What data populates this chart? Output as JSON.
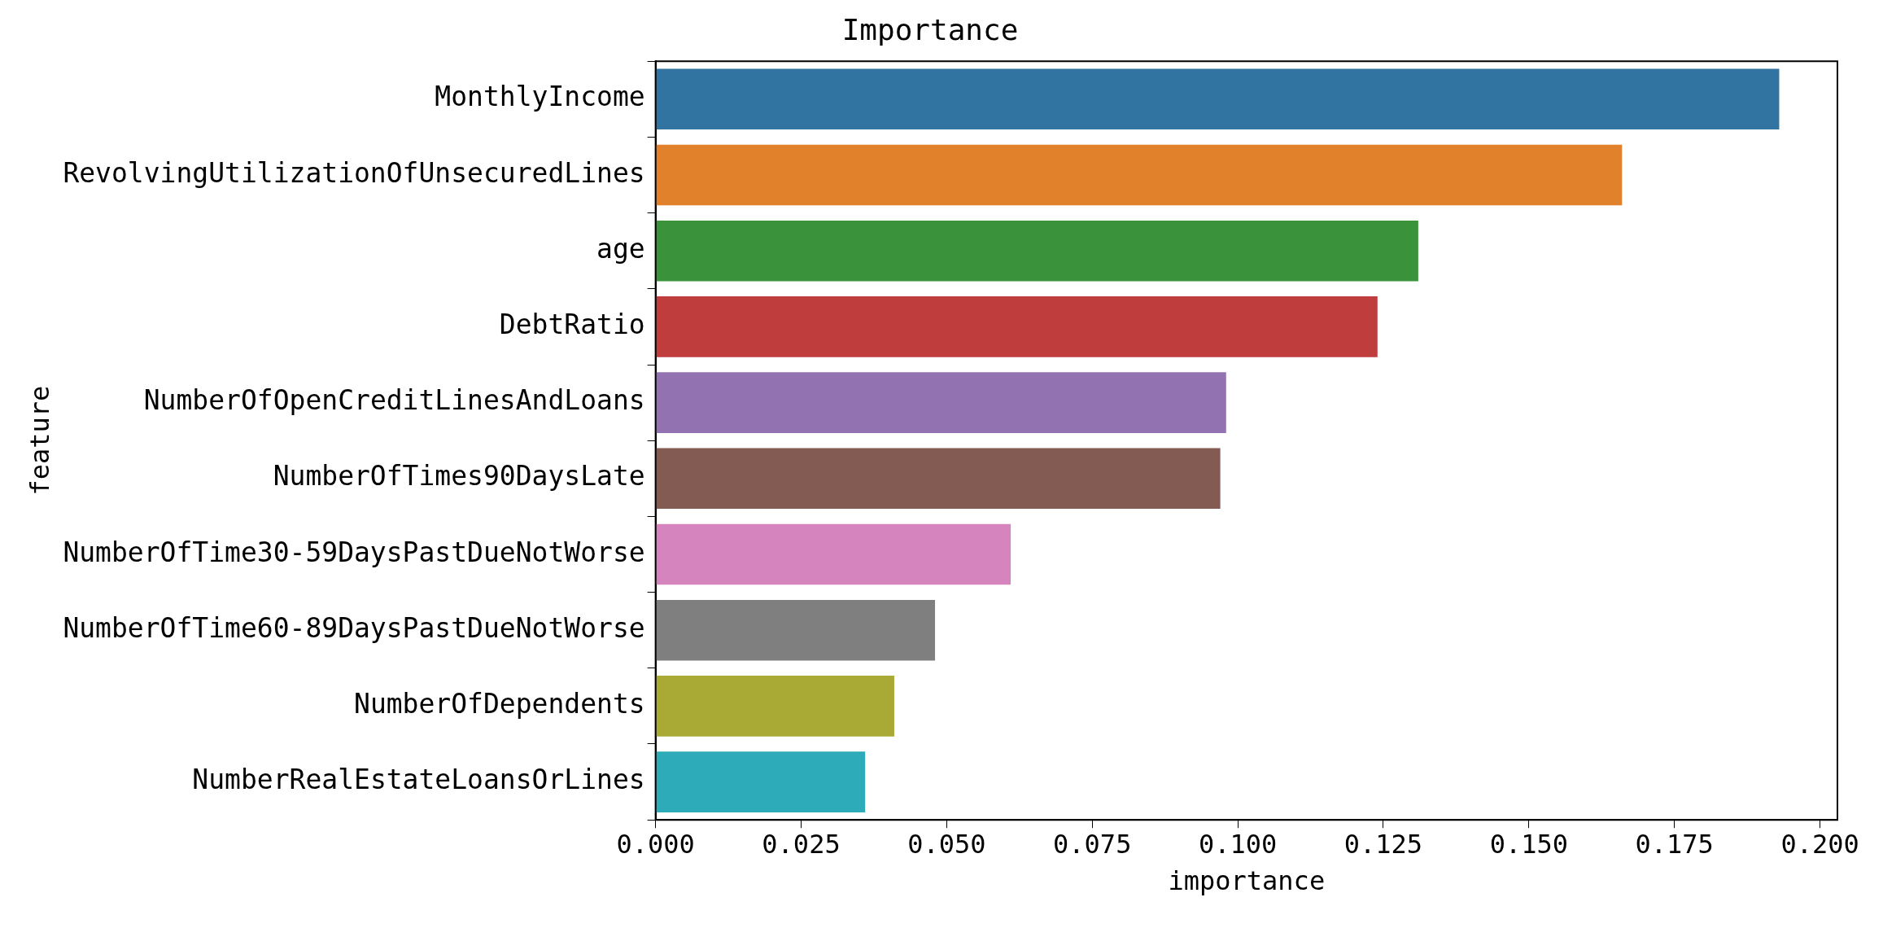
{
  "chart_data": {
    "type": "bar",
    "orientation": "horizontal",
    "title": "Importance",
    "xlabel": "importance",
    "ylabel": "feature",
    "categories": [
      "MonthlyIncome",
      "RevolvingUtilizationOfUnsecuredLines",
      "age",
      "DebtRatio",
      "NumberOfOpenCreditLinesAndLoans",
      "NumberOfTimes90DaysLate",
      "NumberOfTime30-59DaysPastDueNotWorse",
      "NumberOfTime60-89DaysPastDueNotWorse",
      "NumberOfDependents",
      "NumberRealEstateLoansOrLines"
    ],
    "values": [
      0.193,
      0.166,
      0.131,
      0.124,
      0.098,
      0.097,
      0.061,
      0.048,
      0.041,
      0.036
    ],
    "colors": [
      "#3274a1",
      "#e1812c",
      "#3a923a",
      "#c03d3e",
      "#9372b2",
      "#845b53",
      "#d684bd",
      "#7f7f7f",
      "#a9aa35",
      "#2eabb8"
    ],
    "xlim": [
      0,
      0.203
    ],
    "xticks": [
      {
        "value": 0,
        "label": "0.000"
      },
      {
        "value": 0.025,
        "label": "0.025"
      },
      {
        "value": 0.05,
        "label": "0.050"
      },
      {
        "value": 0.075,
        "label": "0.075"
      },
      {
        "value": 0.1,
        "label": "0.100"
      },
      {
        "value": 0.125,
        "label": "0.125"
      },
      {
        "value": 0.15,
        "label": "0.150"
      },
      {
        "value": 0.175,
        "label": "0.175"
      },
      {
        "value": 0.2,
        "label": "0.200"
      }
    ],
    "grid": false,
    "legend": false
  }
}
